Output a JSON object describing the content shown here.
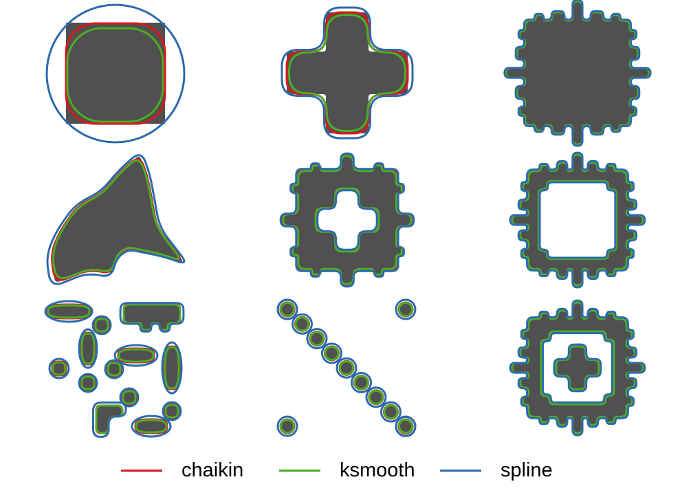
{
  "chart_data": {
    "type": "shape-smoothing-panels",
    "title": "",
    "xlabel": "",
    "ylabel": "",
    "grid": false,
    "legend_position": "bottom",
    "series": [
      {
        "name": "chaikin",
        "color": "#d7191c"
      },
      {
        "name": "ksmooth",
        "color": "#4dac26"
      },
      {
        "name": "spline",
        "color": "#2c6aac"
      }
    ],
    "panels": [
      {
        "id": "square"
      },
      {
        "id": "plus"
      },
      {
        "id": "square-with-bumps"
      },
      {
        "id": "irregular-triangle"
      },
      {
        "id": "ring-with-plus-hole"
      },
      {
        "id": "ring-with-square-hole"
      },
      {
        "id": "scattered-blobs"
      },
      {
        "id": "diagonal-dots"
      },
      {
        "id": "nested-ring-with-plus"
      }
    ]
  },
  "styles": {
    "fill_color": "#505050"
  }
}
